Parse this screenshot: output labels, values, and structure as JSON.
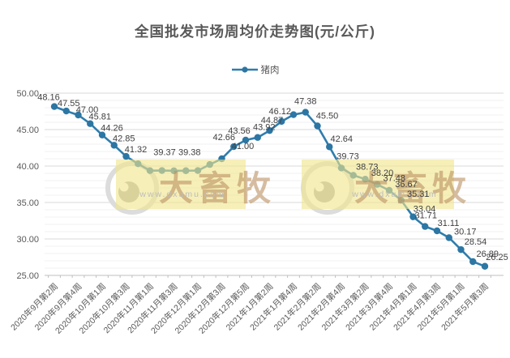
{
  "title": "全国批发市场周均价走势图(元/公斤)",
  "legend": {
    "series_label": "猪肉"
  },
  "watermark": {
    "brand": "大畜牧",
    "url": "www.dxumu.com"
  },
  "colors": {
    "line": "#2f7dad",
    "marker": "#2c76a4",
    "title_text": "#595959",
    "axis_text": "#595959",
    "data_label": "#404040",
    "grid_major": "#d9d9d9",
    "grid_minor": "#f2f2f2",
    "axis_line": "#bfbfbf",
    "watermark_band": "rgba(240,229,140,0.62)",
    "watermark_brand": "rgba(186,144,96,0.60)",
    "watermark_url": "#bdbdbd",
    "watermark_ring": "#dcdcdc",
    "watermark_eye": "#b3b3b3"
  },
  "y_axis": {
    "tick_labels": [
      "50.00",
      "45.00",
      "40.00",
      "35.00",
      "30.00",
      "25.00"
    ],
    "min": 25,
    "max": 50
  },
  "chart_data": {
    "type": "line",
    "title": "全国批发市场周均价走势图(元/公斤)",
    "series_name": "猪肉",
    "ylim": [
      25,
      50
    ],
    "grid": true,
    "legend_position": "top-center",
    "x_tick_labels": [
      "2020年9月第2周",
      "2020年9月第4周",
      "2020年10月第1周",
      "2020年10月第3周",
      "2020年11月第1周",
      "2020年11月第3周",
      "2020年12月第1周",
      "2020年12月第3周",
      "2020年12月第5周",
      "2021年1月第2周",
      "2021年1月第4周",
      "2021年2月第2周",
      "2021年2月第4周",
      "2021年3月第2周",
      "2021年3月第4周",
      "2021年4月第1周",
      "2021年4月第3周",
      "2021年5月第1周",
      "2021年5月第3周"
    ],
    "x_tick_every": 2,
    "values": [
      48.16,
      47.55,
      47.0,
      45.81,
      44.26,
      42.85,
      41.32,
      40.31,
      39.37,
      39.38,
      39.35,
      39.36,
      39.38,
      40.21,
      41.0,
      42.66,
      43.56,
      43.92,
      44.87,
      46.12,
      47.05,
      47.38,
      45.5,
      42.64,
      39.73,
      38.73,
      38.2,
      37.48,
      36.67,
      35.31,
      33.04,
      31.71,
      31.11,
      30.17,
      28.54,
      26.89,
      26.25
    ],
    "point_labels": [
      "48.16",
      "47.55",
      "47.00",
      "45.81",
      "44.26",
      "42.85",
      "41.32",
      "",
      "39.37",
      "39.38",
      "",
      "",
      "",
      "",
      "41.00",
      "42.66",
      "43.56",
      "43.92",
      "44.87",
      "46.12",
      "",
      "47.38",
      "45.50",
      "42.64",
      "39.73",
      "38.73",
      "38.20",
      "37.48",
      "36.67",
      "35.31",
      "33.04",
      "31.71",
      "31.11",
      "30.17",
      "28.54",
      "26.89",
      "26.25"
    ]
  }
}
